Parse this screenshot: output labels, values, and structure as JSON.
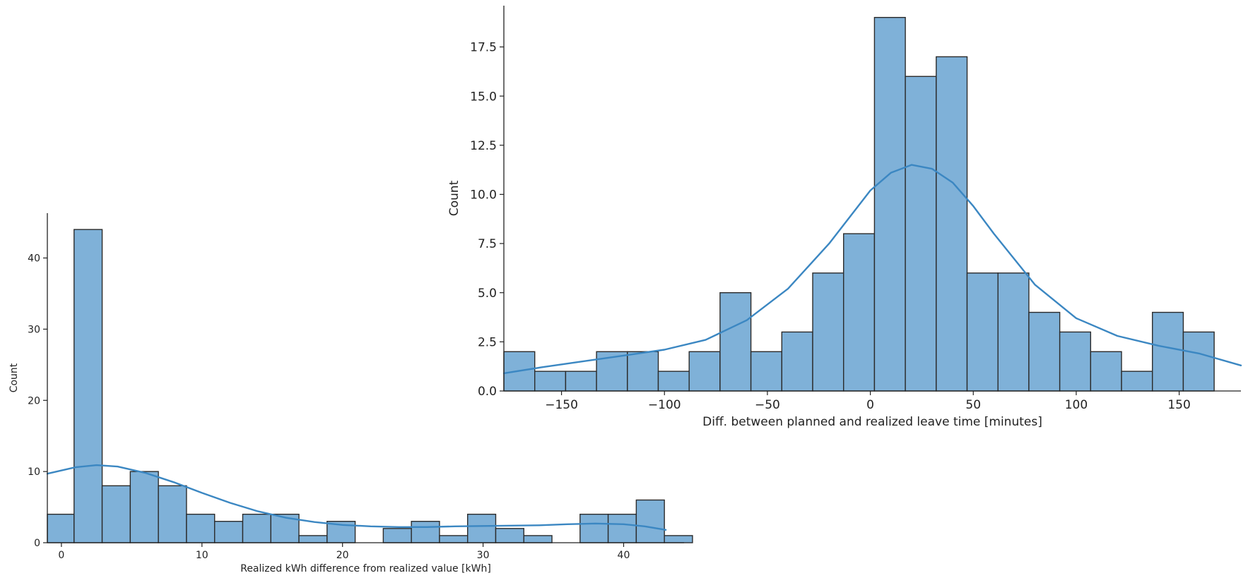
{
  "chart_data": [
    {
      "type": "bar",
      "subtype": "histogram-with-kde",
      "xlabel": "Realized kWh difference from realized value [kWh]",
      "ylabel": "Count",
      "xlim": [
        -1,
        44.3
      ],
      "ylim": [
        0,
        46.3
      ],
      "xticks": [
        0,
        10,
        20,
        30,
        40
      ],
      "yticks": [
        0,
        10,
        20,
        30,
        40
      ],
      "bar_color": "#7fb1d8",
      "edge_color": "#2b2b2b",
      "line_color": "#3b87c2",
      "bins": [
        {
          "x0": -1.0,
          "x1": 0.9,
          "value": 4
        },
        {
          "x0": 0.9,
          "x1": 2.9,
          "value": 44
        },
        {
          "x0": 2.9,
          "x1": 4.9,
          "value": 8
        },
        {
          "x0": 4.9,
          "x1": 6.9,
          "value": 10
        },
        {
          "x0": 6.9,
          "x1": 8.9,
          "value": 8
        },
        {
          "x0": 8.9,
          "x1": 10.9,
          "value": 4
        },
        {
          "x0": 10.9,
          "x1": 12.9,
          "value": 3
        },
        {
          "x0": 12.9,
          "x1": 14.9,
          "value": 4
        },
        {
          "x0": 14.9,
          "x1": 16.9,
          "value": 4
        },
        {
          "x0": 16.9,
          "x1": 18.9,
          "value": 1
        },
        {
          "x0": 18.9,
          "x1": 20.9,
          "value": 3
        },
        {
          "x0": 20.9,
          "x1": 22.9,
          "value": 0
        },
        {
          "x0": 22.9,
          "x1": 24.9,
          "value": 2
        },
        {
          "x0": 24.9,
          "x1": 26.9,
          "value": 3
        },
        {
          "x0": 26.9,
          "x1": 28.9,
          "value": 1
        },
        {
          "x0": 28.9,
          "x1": 30.9,
          "value": 4
        },
        {
          "x0": 30.9,
          "x1": 32.9,
          "value": 2
        },
        {
          "x0": 32.9,
          "x1": 34.9,
          "value": 1
        },
        {
          "x0": 34.9,
          "x1": 36.9,
          "value": 0
        },
        {
          "x0": 36.9,
          "x1": 38.9,
          "value": 4
        },
        {
          "x0": 38.9,
          "x1": 40.9,
          "value": 4
        },
        {
          "x0": 40.9,
          "x1": 42.9,
          "value": 6
        },
        {
          "x0": 42.9,
          "x1": 44.9,
          "value": 1
        }
      ],
      "kde": {
        "x": [
          -1,
          1,
          2.5,
          4,
          6,
          8,
          10,
          12,
          14,
          16,
          18,
          20,
          22,
          24,
          26,
          28,
          30,
          32,
          34,
          36,
          38,
          40,
          41.5,
          43
        ],
        "y": [
          9.7,
          10.6,
          10.9,
          10.7,
          9.8,
          8.5,
          7.0,
          5.6,
          4.4,
          3.5,
          2.9,
          2.5,
          2.3,
          2.2,
          2.2,
          2.3,
          2.35,
          2.4,
          2.45,
          2.6,
          2.7,
          2.6,
          2.3,
          1.8
        ]
      }
    },
    {
      "type": "bar",
      "subtype": "histogram-with-kde",
      "xlabel": "Diff. between planned and realized leave time [minutes]",
      "ylabel": "Count",
      "xlim": [
        -178,
        180
      ],
      "ylim": [
        0,
        19.6
      ],
      "xticks": [
        -150,
        -100,
        -50,
        0,
        50,
        100,
        150
      ],
      "xtick_labels": [
        "−150",
        "−100",
        "−50",
        "0",
        "50",
        "100",
        "150"
      ],
      "yticks": [
        0,
        2.5,
        5,
        7.5,
        10,
        12.5,
        15,
        17.5
      ],
      "ytick_labels": [
        "0.0",
        "2.5",
        "5.0",
        "7.5",
        "10.0",
        "12.5",
        "15.0",
        "17.5"
      ],
      "bar_color": "#7fb1d8",
      "edge_color": "#2b2b2b",
      "line_color": "#3b87c2",
      "bins": [
        {
          "x0": -178,
          "x1": -163,
          "value": 2
        },
        {
          "x0": -163,
          "x1": -148,
          "value": 1
        },
        {
          "x0": -148,
          "x1": -133,
          "value": 1
        },
        {
          "x0": -133,
          "x1": -118,
          "value": 2
        },
        {
          "x0": -118,
          "x1": -103,
          "value": 2
        },
        {
          "x0": -103,
          "x1": -88,
          "value": 1
        },
        {
          "x0": -88,
          "x1": -73,
          "value": 2
        },
        {
          "x0": -73,
          "x1": -58,
          "value": 5
        },
        {
          "x0": -58,
          "x1": -43,
          "value": 2
        },
        {
          "x0": -43,
          "x1": -28,
          "value": 3
        },
        {
          "x0": -28,
          "x1": -13,
          "value": 6
        },
        {
          "x0": -13,
          "x1": 2,
          "value": 8
        },
        {
          "x0": 2,
          "x1": 17,
          "value": 19
        },
        {
          "x0": 17,
          "x1": 32,
          "value": 16
        },
        {
          "x0": 32,
          "x1": 47,
          "value": 17
        },
        {
          "x0": 47,
          "x1": 62,
          "value": 6
        },
        {
          "x0": 62,
          "x1": 77,
          "value": 6
        },
        {
          "x0": 77,
          "x1": 92,
          "value": 4
        },
        {
          "x0": 92,
          "x1": 107,
          "value": 3
        },
        {
          "x0": 107,
          "x1": 122,
          "value": 2
        },
        {
          "x0": 122,
          "x1": 137,
          "value": 1
        },
        {
          "x0": 137,
          "x1": 152,
          "value": 4
        },
        {
          "x0": 152,
          "x1": 167,
          "value": 3
        }
      ],
      "kde": {
        "x": [
          -178,
          -160,
          -140,
          -120,
          -100,
          -80,
          -60,
          -40,
          -20,
          0,
          10,
          20,
          30,
          40,
          50,
          60,
          80,
          100,
          120,
          140,
          160,
          180
        ],
        "y": [
          0.9,
          1.2,
          1.5,
          1.8,
          2.1,
          2.6,
          3.6,
          5.2,
          7.5,
          10.2,
          11.1,
          11.5,
          11.3,
          10.6,
          9.4,
          8.0,
          5.4,
          3.7,
          2.8,
          2.3,
          1.9,
          1.3
        ]
      }
    }
  ]
}
